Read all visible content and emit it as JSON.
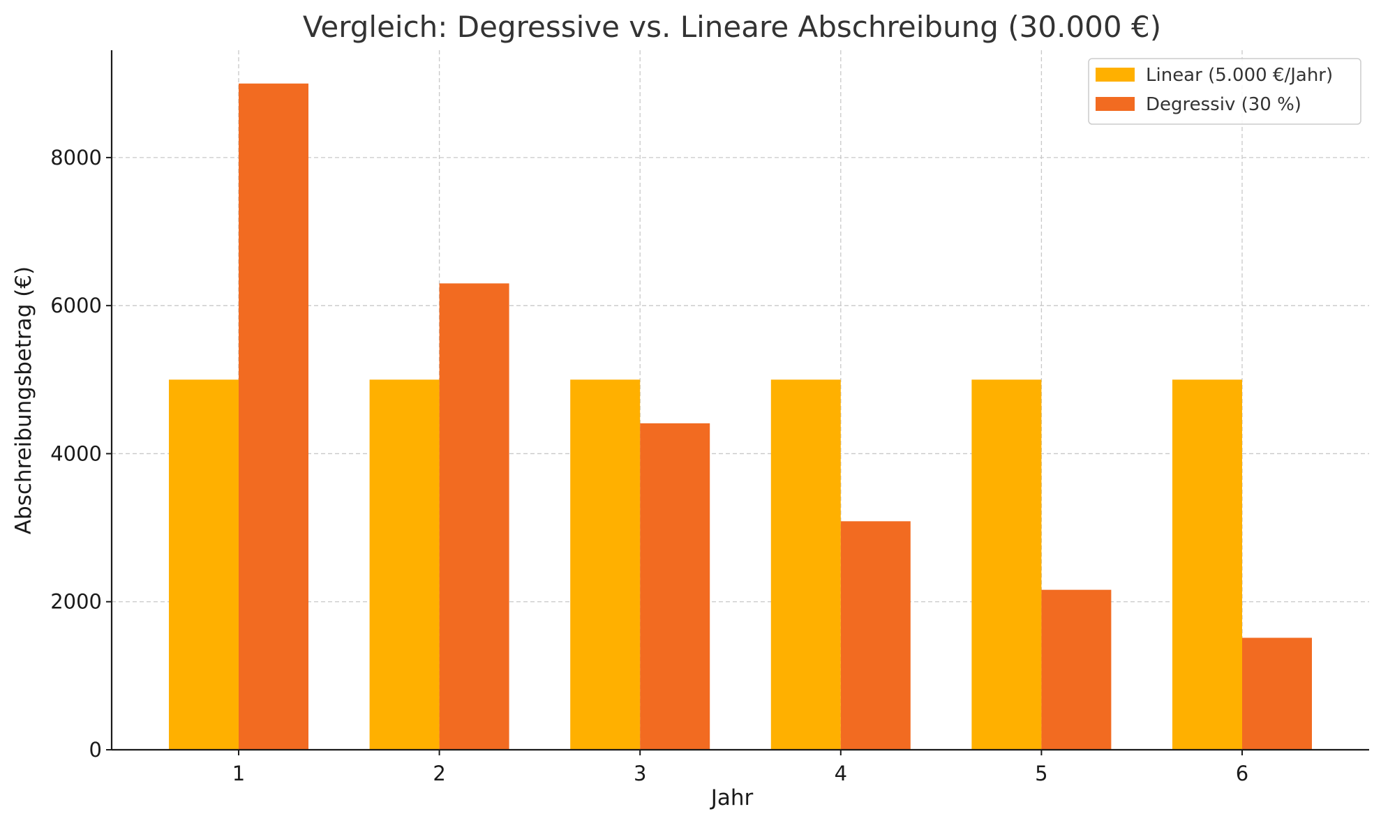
{
  "chart_data": {
    "type": "bar",
    "title": "Vergleich: Degressive vs. Lineare Abschreibung (30.000 €)",
    "xlabel": "Jahr",
    "ylabel": "Abschreibungsbetrag (€)",
    "categories": [
      "1",
      "2",
      "3",
      "4",
      "5",
      "6"
    ],
    "ylim": [
      0,
      9450
    ],
    "yticks": [
      0,
      2000,
      4000,
      6000,
      8000
    ],
    "grid": true,
    "legend_position": "top-right",
    "series": [
      {
        "name": "Linear (5.000 €/Jahr)",
        "color": "#FFB000",
        "values": [
          5000,
          5000,
          5000,
          5000,
          5000,
          5000
        ]
      },
      {
        "name": "Degressiv (30 %)",
        "color": "#F26B21",
        "values": [
          9000,
          6300,
          4410,
          3087,
          2160.9,
          1512.6
        ]
      }
    ]
  }
}
